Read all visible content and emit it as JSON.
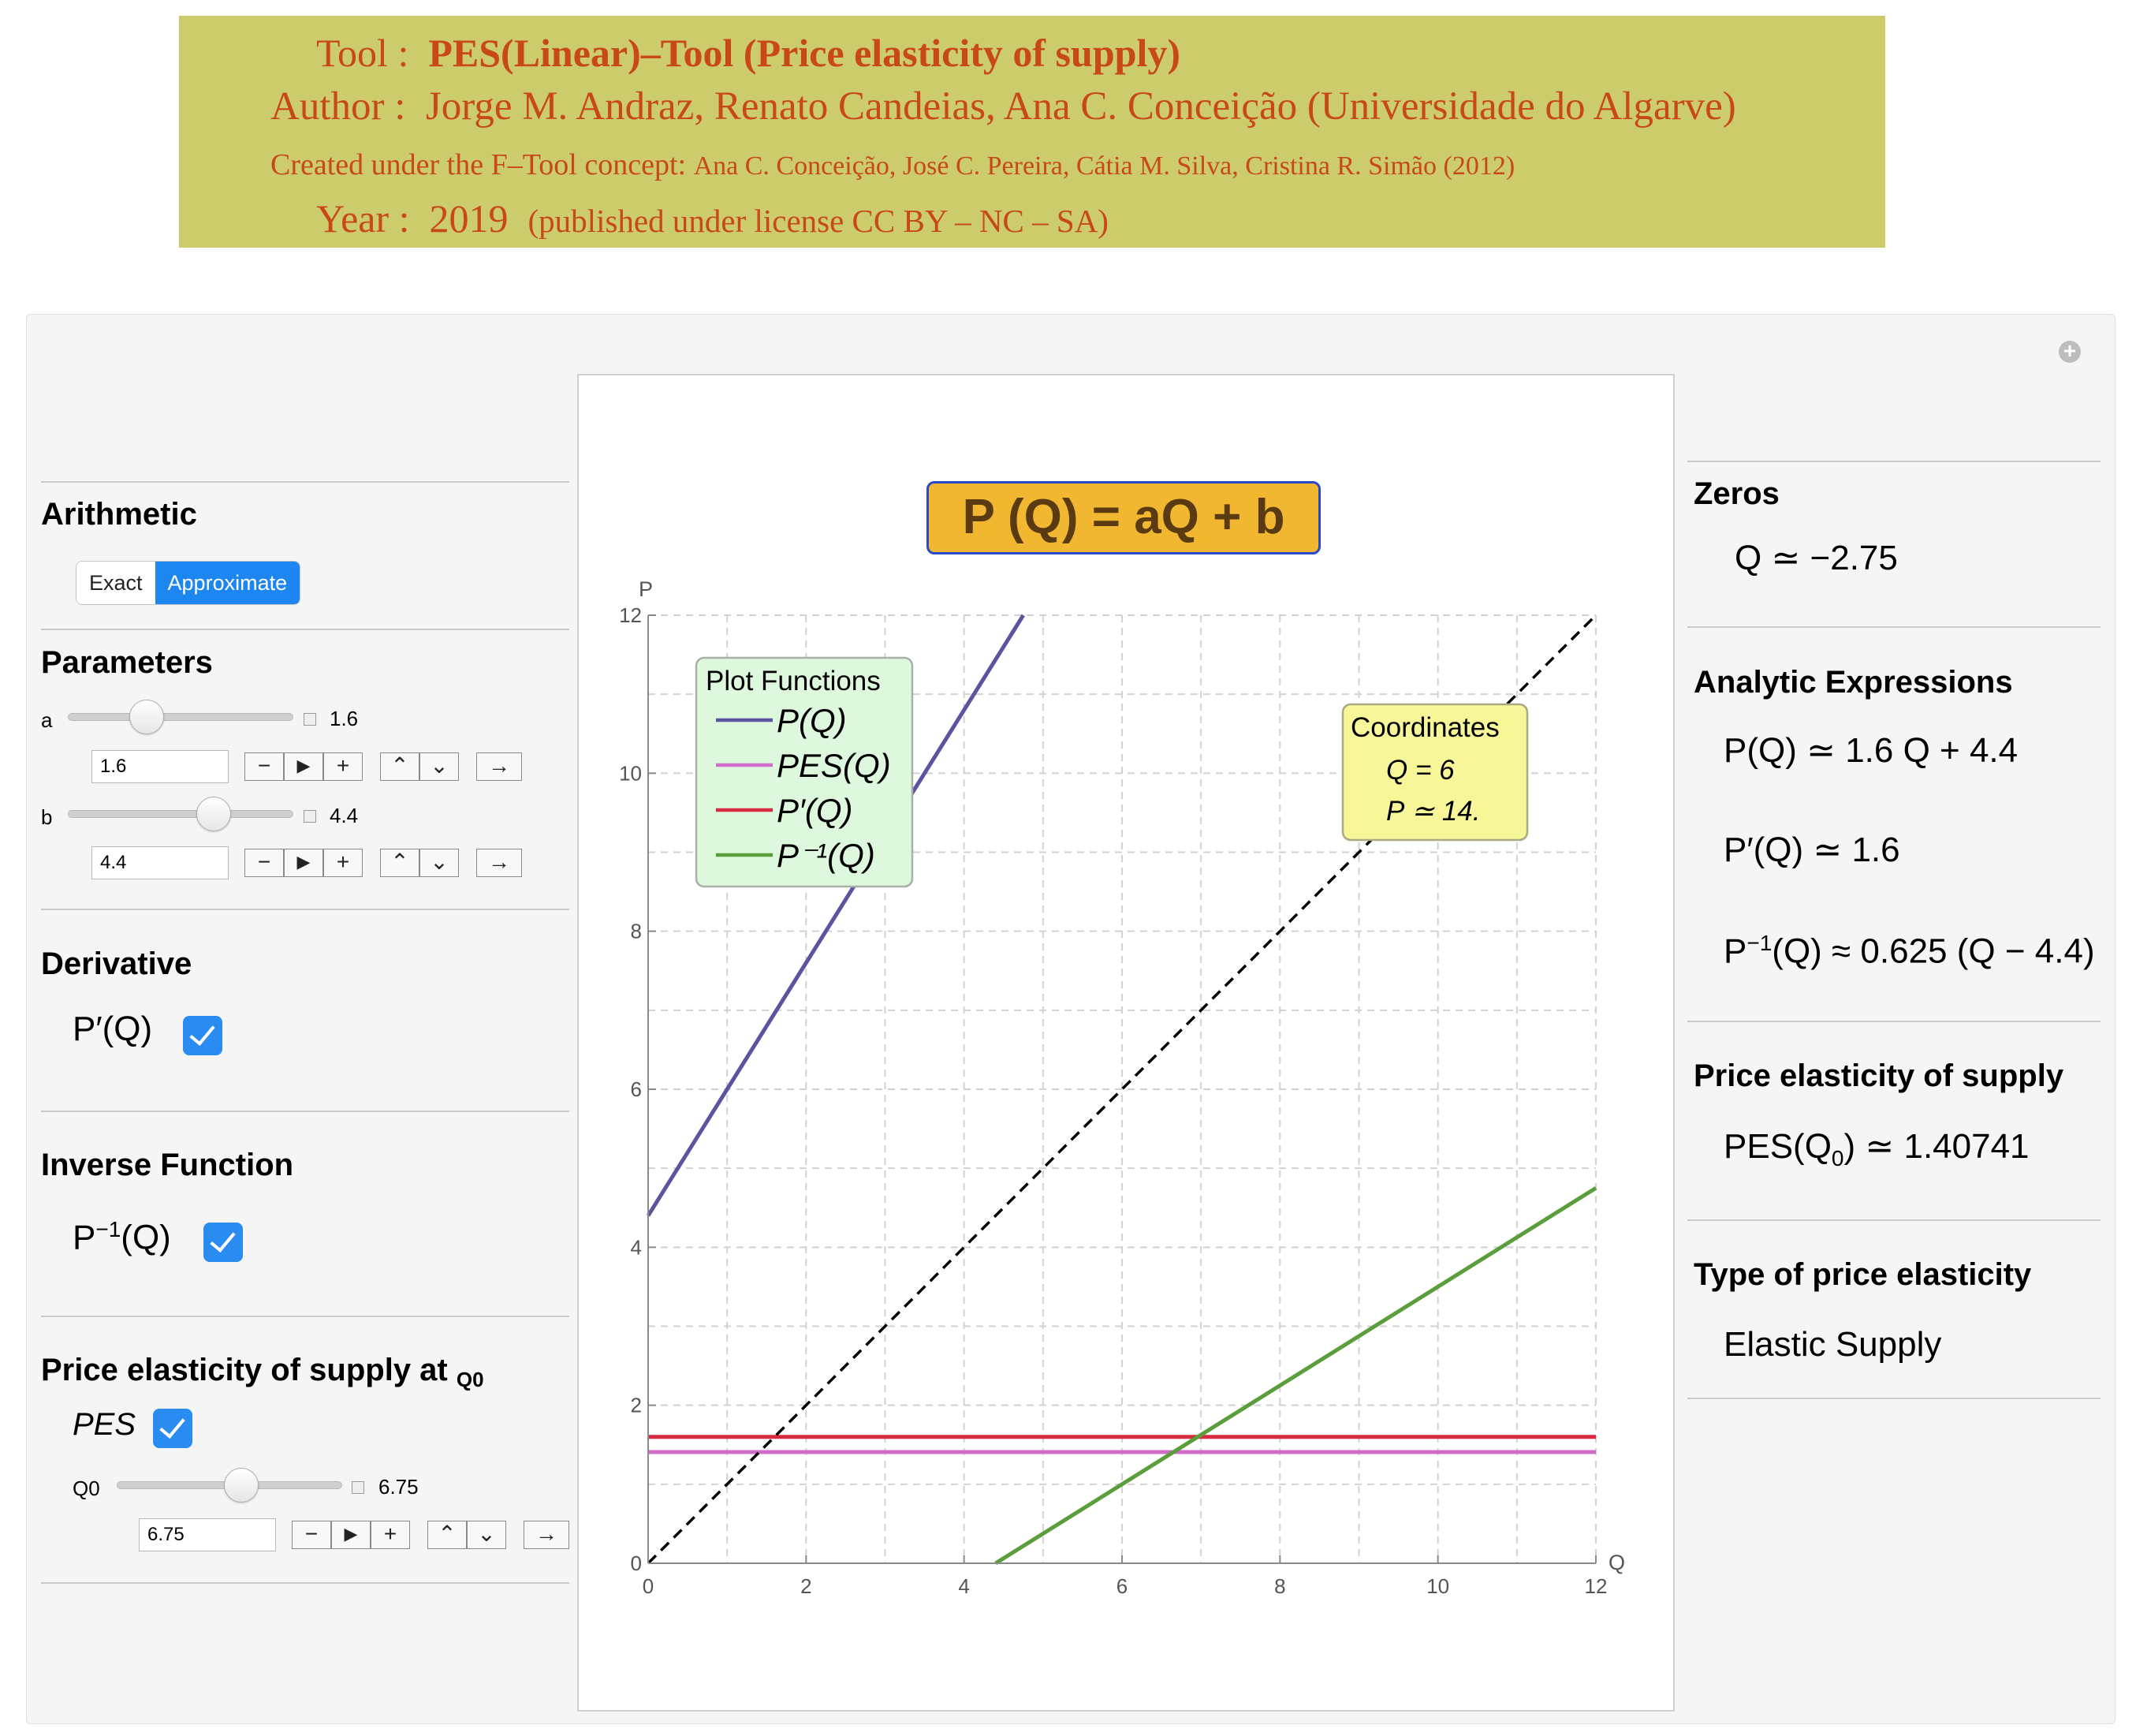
{
  "header": {
    "tool_label": "Tool :",
    "tool_value": "PES(Linear)–Tool (Price elasticity of supply)",
    "author_label": "Author :",
    "author_value": "Jorge M. Andraz, Renato Candeias, Ana C. Conceição (Universidade do Algarve)",
    "created_label": "Created under the F–Tool concept:",
    "created_value": "Ana C. Conceição, José C. Pereira, Cátia M. Silva, Cristina R. Simão (2012)",
    "year_label": "Year :",
    "year_value": "2019",
    "license": "(published under license CC BY – NC – SA)"
  },
  "left": {
    "arithmetic": {
      "title": "Arithmetic",
      "exact": "Exact",
      "approximate": "Approximate",
      "selected": "Approximate"
    },
    "parameters": {
      "title": "Parameters",
      "a": {
        "label": "a",
        "value": "1.6",
        "input": "1.6",
        "min": -5,
        "max": 10
      },
      "b": {
        "label": "b",
        "value": "4.4",
        "input": "4.4",
        "min": -5,
        "max": 10
      }
    },
    "derivative": {
      "title": "Derivative",
      "label": "P′(Q)",
      "checked": true
    },
    "inverse": {
      "title": "Inverse Function",
      "label": "P",
      "sup": "−1",
      "arg": "(Q)",
      "checked": true
    },
    "pes": {
      "title": "Price elasticity of supply at",
      "title_sub": "Q0",
      "label": "PES",
      "checked": true,
      "q0": {
        "label": "Q0",
        "value": "6.75",
        "input": "6.75",
        "min": 0,
        "max": 20
      }
    }
  },
  "buttons": {
    "minus": "−",
    "play": "▶",
    "plus": "+",
    "faster": "⌃",
    "slower": "⌄",
    "arrow": "→"
  },
  "plot": {
    "formula": "P (Q) =  aQ + b",
    "legend": {
      "title": "Plot Functions",
      "items": [
        "P(Q)",
        "PES(Q)",
        "P′(Q)",
        "P⁻¹(Q)"
      ]
    },
    "coords": {
      "title": "Coordinates",
      "q": "Q = 6",
      "p": "P ≃ 14."
    }
  },
  "chart_data": {
    "type": "line",
    "xlabel": "Q",
    "ylabel": "P",
    "xlim": [
      0,
      12
    ],
    "ylim": [
      0,
      12
    ],
    "xticks": [
      0,
      2,
      4,
      6,
      8,
      10,
      12
    ],
    "yticks": [
      0,
      2,
      4,
      6,
      8,
      10,
      12
    ],
    "grid": true,
    "series": [
      {
        "name": "P(Q)",
        "color": "#5b55a0",
        "x": [
          0,
          4.75
        ],
        "y": [
          4.4,
          12.0
        ]
      },
      {
        "name": "PES(Q)",
        "color": "#cf6cc8",
        "x": [
          0,
          12
        ],
        "y": [
          1.40741,
          1.40741
        ]
      },
      {
        "name": "P′(Q)",
        "color": "#d82a3f",
        "x": [
          0,
          12
        ],
        "y": [
          1.6,
          1.6
        ]
      },
      {
        "name": "P⁻¹(Q)",
        "color": "#5a9e3c",
        "x": [
          4.4,
          12
        ],
        "y": [
          0,
          4.75
        ]
      },
      {
        "color": "#000000",
        "dashed": true,
        "x": [
          0,
          12
        ],
        "y": [
          0,
          12
        ]
      }
    ]
  },
  "right": {
    "zeros": {
      "title": "Zeros",
      "value": "Q ≃ −2.75"
    },
    "analytic": {
      "title": "Analytic Expressions",
      "p": "P(Q) ≃ 1.6 Q + 4.4",
      "dp": "P′(Q) ≃ 1.6",
      "inv_lead": "P",
      "inv_sup": "−1",
      "inv_rest": "(Q) ≈ 0.625 (Q − 4.4)"
    },
    "pes": {
      "title": "Price elasticity of supply",
      "lead": "PES(Q",
      "sub": "0",
      "rest": ") ≃ 1.40741"
    },
    "type": {
      "title": "Type of price elasticity",
      "value": "Elastic Supply"
    }
  }
}
